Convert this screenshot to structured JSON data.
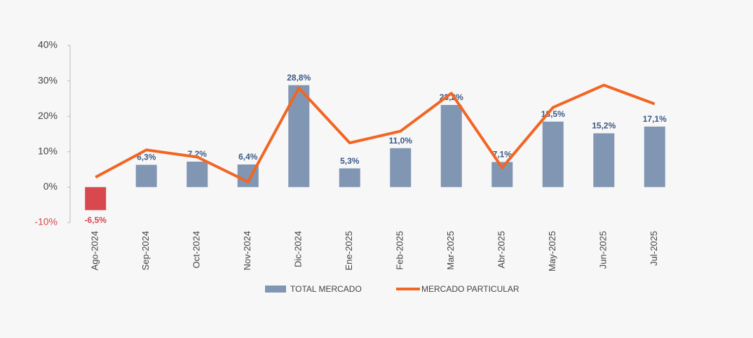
{
  "chart_data": {
    "type": "combo",
    "categories": [
      "Ago-2024",
      "Sep-2024",
      "Oct-2024",
      "Nov-2024",
      "Dic-2024",
      "Ene-2025",
      "Feb-2025",
      "Mar-2025",
      "Abr-2025",
      "May-2025",
      "Jun-2025",
      "Jul-2025"
    ],
    "series": [
      {
        "name": "TOTAL MERCADO",
        "type": "bar",
        "color": "#8096b3",
        "negative_color": "#d9474f",
        "values": [
          -6.5,
          6.3,
          7.2,
          6.4,
          28.8,
          5.3,
          11.0,
          23.2,
          7.1,
          18.5,
          15.2,
          17.1
        ],
        "value_labels": [
          "-6,5%",
          "6,3%",
          "7,2%",
          "6,4%",
          "28,8%",
          "5,3%",
          "11,0%",
          "23,2%",
          "7,1%",
          "18,5%",
          "15,2%",
          "17,1%"
        ]
      },
      {
        "name": "MERCADO PARTICULAR",
        "type": "line",
        "color": "#f26522",
        "values": [
          2.8,
          10.5,
          8.5,
          1.5,
          28.0,
          12.5,
          15.8,
          26.5,
          5.5,
          22.5,
          28.8,
          23.5
        ]
      }
    ],
    "ylim": [
      -10,
      40
    ],
    "yticks": [
      {
        "value": -10,
        "label": "-10%"
      },
      {
        "value": 0,
        "label": "0%"
      },
      {
        "value": 10,
        "label": "10%"
      },
      {
        "value": 20,
        "label": "20%"
      },
      {
        "value": 30,
        "label": "30%"
      },
      {
        "value": 40,
        "label": "40%"
      }
    ],
    "legend": "bottom"
  }
}
